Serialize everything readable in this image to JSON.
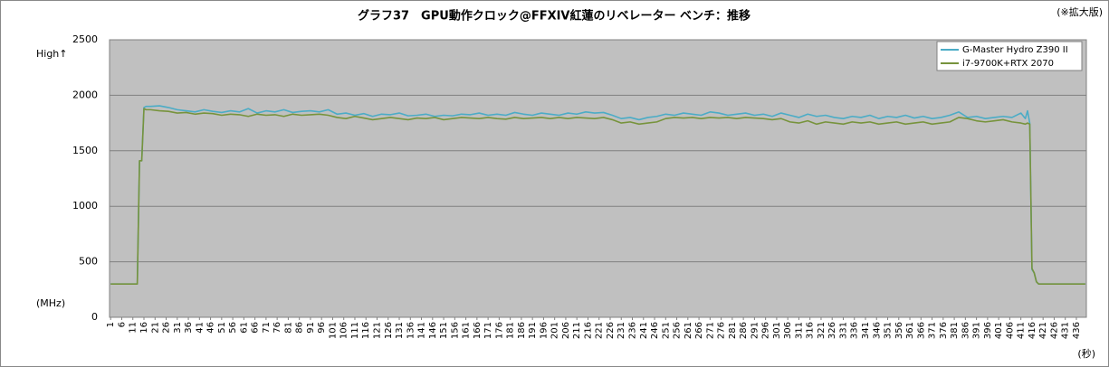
{
  "chart_data": {
    "type": "line",
    "title": "グラフ37　GPU動作クロック@FFXIV紅蓮のリベレーター ベンチ：推移",
    "subtitle": "(※拡大版)",
    "y_axis_label": "(MHz)",
    "y_axis_note": "High↑",
    "x_axis_label": "(秒)",
    "x": [
      1,
      13,
      14,
      15,
      16,
      17,
      19,
      23,
      27,
      31,
      35,
      39,
      43,
      47,
      51,
      55,
      59,
      63,
      67,
      71,
      75,
      79,
      83,
      87,
      91,
      95,
      99,
      103,
      107,
      111,
      115,
      119,
      123,
      127,
      131,
      135,
      139,
      143,
      147,
      151,
      155,
      159,
      163,
      167,
      171,
      175,
      179,
      183,
      187,
      191,
      195,
      199,
      203,
      207,
      211,
      215,
      219,
      223,
      227,
      231,
      235,
      239,
      243,
      247,
      251,
      255,
      259,
      263,
      267,
      271,
      275,
      279,
      283,
      287,
      291,
      295,
      299,
      303,
      307,
      311,
      315,
      319,
      323,
      327,
      331,
      335,
      339,
      343,
      347,
      351,
      355,
      359,
      363,
      367,
      371,
      375,
      379,
      383,
      387,
      391,
      395,
      399,
      403,
      407,
      411,
      413,
      414,
      415,
      416,
      417,
      418,
      419,
      440
    ],
    "series": [
      {
        "name": "G-Master Hydro Z390 II",
        "color": "#4bacc6",
        "values": [
          300,
          300,
          1410,
          1410,
          1890,
          1900,
          1900,
          1905,
          1890,
          1870,
          1860,
          1850,
          1870,
          1855,
          1845,
          1860,
          1850,
          1880,
          1840,
          1860,
          1850,
          1870,
          1845,
          1855,
          1860,
          1850,
          1870,
          1830,
          1840,
          1820,
          1835,
          1810,
          1830,
          1825,
          1840,
          1815,
          1820,
          1830,
          1810,
          1820,
          1815,
          1830,
          1825,
          1840,
          1820,
          1830,
          1820,
          1845,
          1830,
          1820,
          1840,
          1830,
          1820,
          1840,
          1830,
          1850,
          1840,
          1845,
          1820,
          1790,
          1800,
          1780,
          1800,
          1810,
          1830,
          1820,
          1840,
          1830,
          1820,
          1850,
          1840,
          1820,
          1830,
          1840,
          1820,
          1830,
          1810,
          1840,
          1820,
          1800,
          1830,
          1810,
          1820,
          1800,
          1790,
          1810,
          1800,
          1820,
          1790,
          1810,
          1800,
          1820,
          1795,
          1810,
          1790,
          1800,
          1820,
          1850,
          1800,
          1810,
          1790,
          1800,
          1810,
          1800,
          1840,
          1790,
          1860,
          1750,
          430,
          400,
          320,
          300,
          300
        ]
      },
      {
        "name": "i7-9700K+RTX 2070",
        "color": "#77933c",
        "values": [
          300,
          300,
          1410,
          1410,
          1880,
          1870,
          1870,
          1860,
          1855,
          1840,
          1845,
          1830,
          1840,
          1835,
          1820,
          1830,
          1825,
          1810,
          1830,
          1820,
          1825,
          1810,
          1830,
          1820,
          1825,
          1830,
          1820,
          1800,
          1790,
          1810,
          1795,
          1780,
          1790,
          1800,
          1790,
          1780,
          1795,
          1790,
          1800,
          1780,
          1790,
          1800,
          1795,
          1790,
          1800,
          1790,
          1785,
          1800,
          1790,
          1795,
          1800,
          1790,
          1800,
          1790,
          1800,
          1795,
          1790,
          1800,
          1780,
          1750,
          1760,
          1740,
          1750,
          1760,
          1790,
          1800,
          1795,
          1800,
          1790,
          1800,
          1795,
          1800,
          1790,
          1800,
          1795,
          1790,
          1780,
          1790,
          1760,
          1750,
          1770,
          1740,
          1760,
          1750,
          1740,
          1760,
          1750,
          1760,
          1740,
          1750,
          1760,
          1740,
          1750,
          1760,
          1740,
          1750,
          1760,
          1800,
          1790,
          1770,
          1760,
          1770,
          1780,
          1760,
          1750,
          1740,
          1750,
          1740,
          440,
          400,
          320,
          300,
          300
        ]
      }
    ],
    "xticks": [
      1,
      6,
      11,
      16,
      21,
      26,
      31,
      36,
      41,
      46,
      51,
      56,
      61,
      66,
      71,
      76,
      81,
      86,
      91,
      96,
      101,
      106,
      111,
      116,
      121,
      126,
      131,
      136,
      141,
      146,
      151,
      156,
      161,
      166,
      171,
      176,
      181,
      186,
      191,
      196,
      201,
      206,
      211,
      216,
      221,
      226,
      231,
      236,
      241,
      246,
      251,
      256,
      261,
      266,
      271,
      276,
      281,
      286,
      291,
      296,
      301,
      306,
      311,
      316,
      321,
      326,
      331,
      336,
      341,
      346,
      351,
      356,
      361,
      366,
      371,
      376,
      381,
      386,
      391,
      396,
      401,
      406,
      411,
      416,
      421,
      426,
      431,
      436
    ],
    "xlim": [
      0.5,
      440.5
    ],
    "ylim": [
      0,
      2500
    ],
    "yticks": [
      0,
      500,
      1000,
      1500,
      2000,
      2500
    ],
    "grid": true,
    "legend": "top-right"
  }
}
